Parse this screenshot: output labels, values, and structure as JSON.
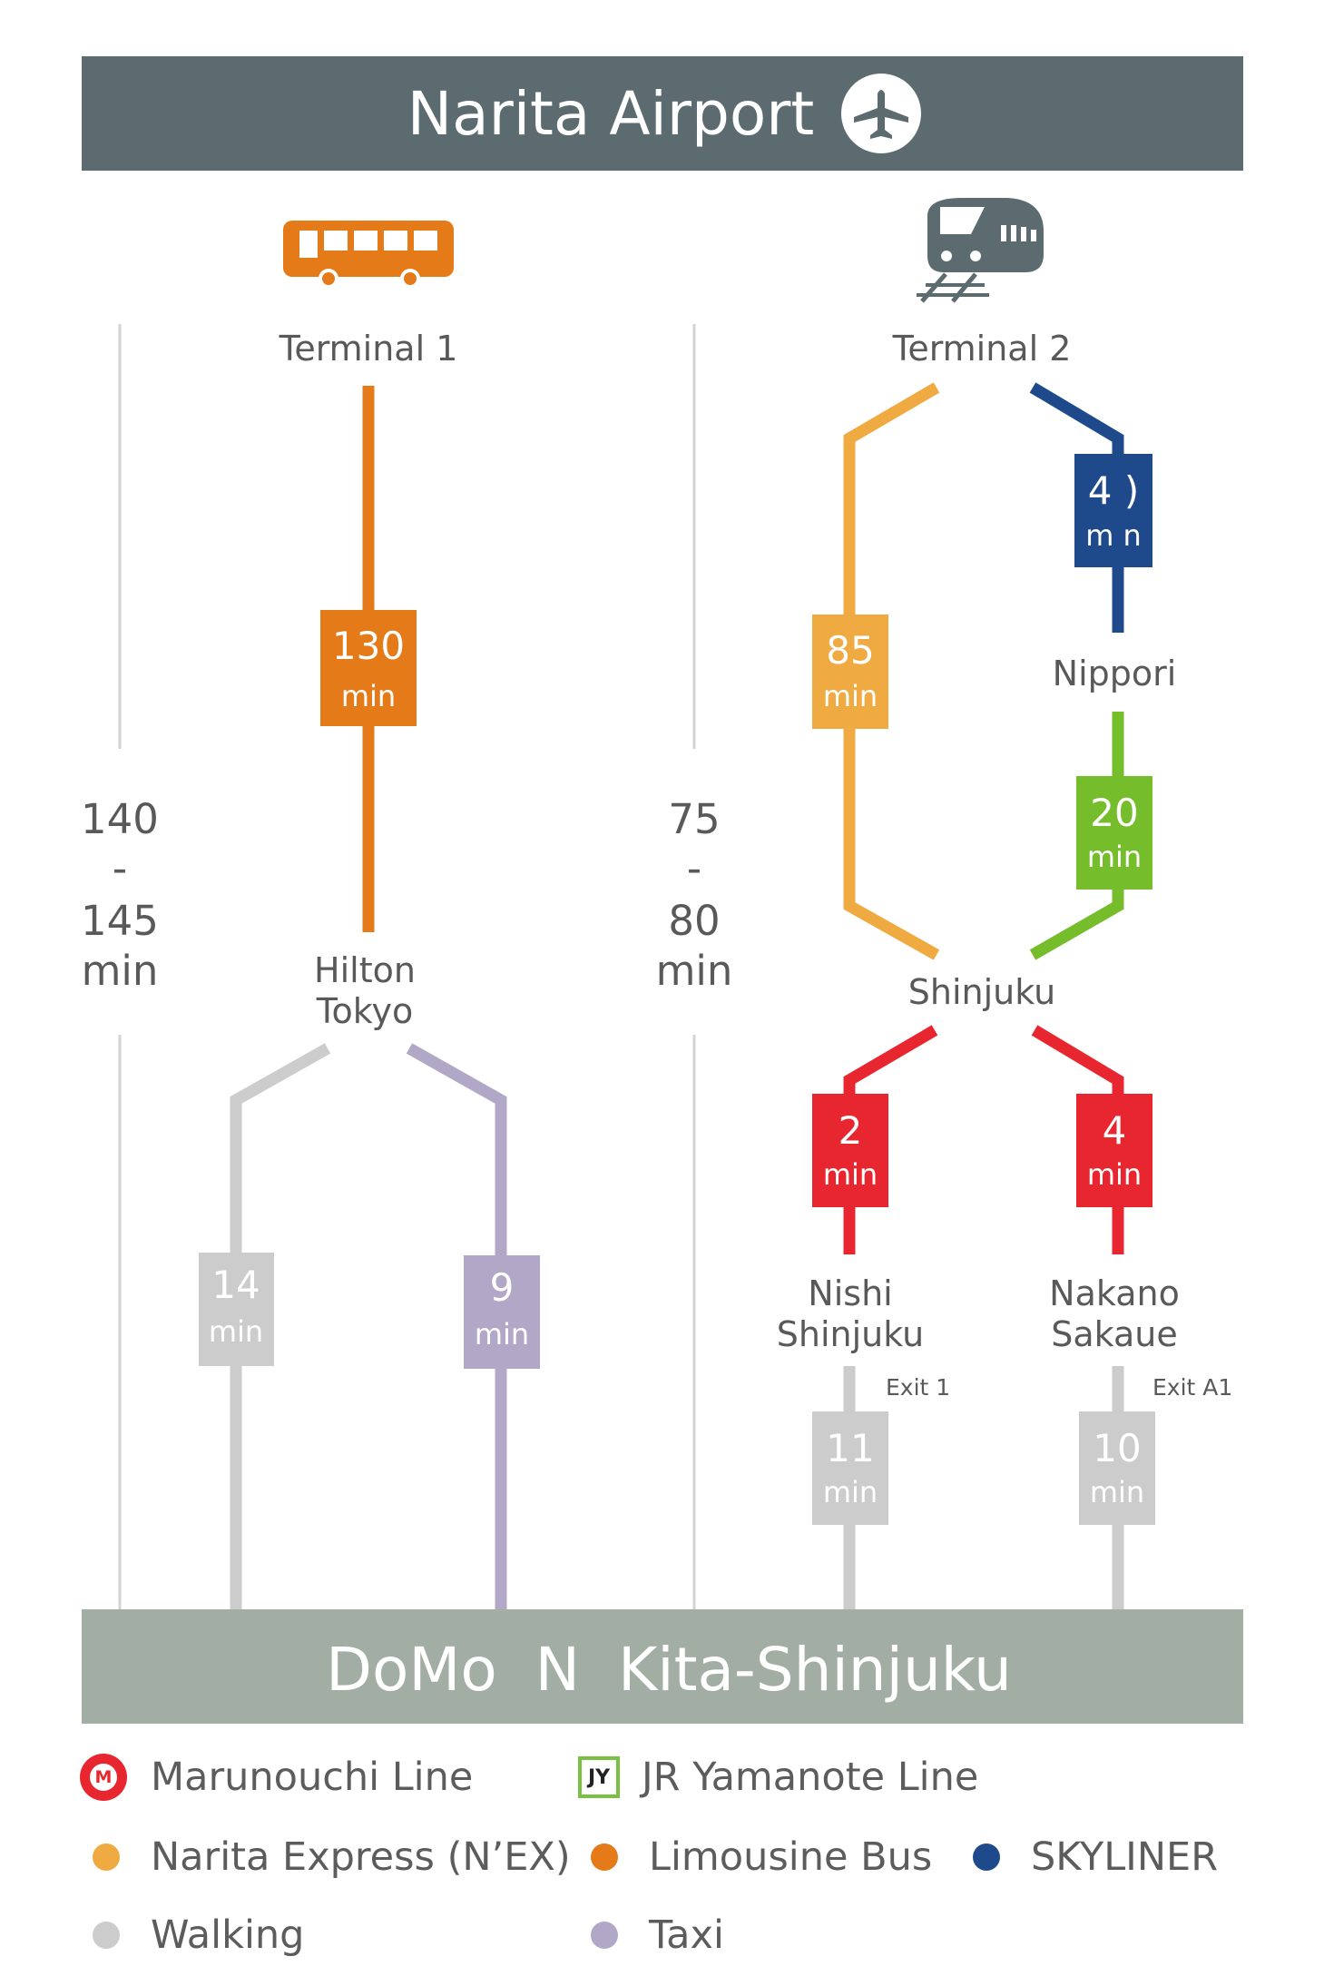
{
  "colors": {
    "header_bg": "#5c6b70",
    "footer_bg": "#a2ada3",
    "bus": "#e57a18",
    "narita_express": "#f0aa42",
    "skyliner": "#1e4a8c",
    "jr_yamanote": "#76bd2c",
    "marunouchi": "#e8262f",
    "walking": "#cccccc",
    "taxi": "#b0a8c6",
    "divider": "#d3d3d3",
    "label_text": "#595959"
  },
  "header": {
    "title": "Narita Airport",
    "icon": "airplane-icon"
  },
  "footer": {
    "title": "DoMo  N  Kita-Shinjuku"
  },
  "left_route": {
    "icon": "bus-icon",
    "start": "Terminal 1",
    "total_time": [
      "140",
      "-",
      "145",
      "min"
    ],
    "bus_time": {
      "value": "130",
      "unit": "min"
    },
    "transfer": [
      "Hilton",
      "Tokyo"
    ],
    "walking_time": {
      "value": "14",
      "unit": "min"
    },
    "taxi_time": {
      "value": "9",
      "unit": "min"
    }
  },
  "right_route": {
    "icon": "train-icon",
    "start": "Terminal 2",
    "total_time": [
      "75",
      "-",
      "80",
      "min"
    ],
    "nex_time": {
      "value": "85",
      "unit": "min"
    },
    "skyliner_time": {
      "value": "4 )",
      "unit": "m n"
    },
    "nippori": "Nippori",
    "jy_time": {
      "value": "20",
      "unit": "min"
    },
    "shinjuku": "Shinjuku",
    "marunouchi_a": {
      "value": "2",
      "unit": "min"
    },
    "marunouchi_b": {
      "value": "4",
      "unit": "min"
    },
    "nishi_shinjuku": [
      "Nishi",
      "Shinjuku"
    ],
    "nakano_sakaue": [
      "Nakano",
      "Sakaue"
    ],
    "exit_a": "Exit 1",
    "exit_b": "Exit A1",
    "walk_a": {
      "value": "11",
      "unit": "min"
    },
    "walk_b": {
      "value": "10",
      "unit": "min"
    }
  },
  "legend": {
    "marunouchi": {
      "label": "Marunouchi Line",
      "badge": "M"
    },
    "jr_yamanote": {
      "label": "JR Yamanote Line",
      "badge": "JY"
    },
    "narita_express": "Narita Express (N’EX)",
    "limousine_bus": "Limousine Bus",
    "skyliner": "SKYLINER",
    "walking": "Walking",
    "taxi": "Taxi"
  }
}
